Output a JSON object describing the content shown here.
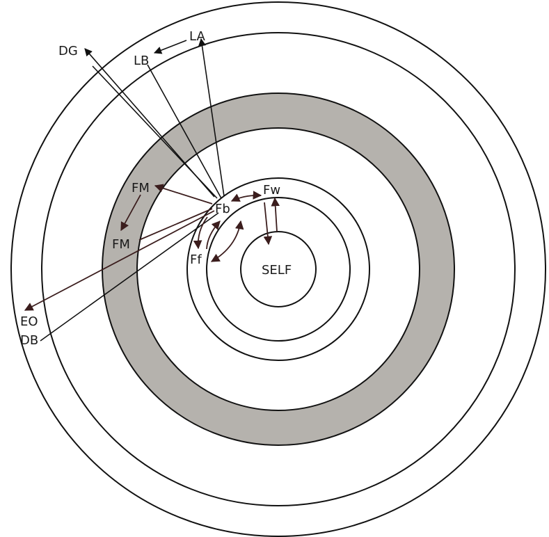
{
  "diagram": {
    "labels": {
      "self": "SELF",
      "fw": "Fw",
      "fb": "Fb",
      "ff": "Ff",
      "fm_upper": "FM",
      "fm_lower": "FM",
      "dg": "DG",
      "lb": "LB",
      "la": "LA",
      "eo": "EO",
      "db": "DB"
    },
    "colors": {
      "band_fill": "#b5b2ad",
      "stroke": "#111111",
      "arrow_dark": "#3b1d1d",
      "background": "#ffffff"
    }
  }
}
